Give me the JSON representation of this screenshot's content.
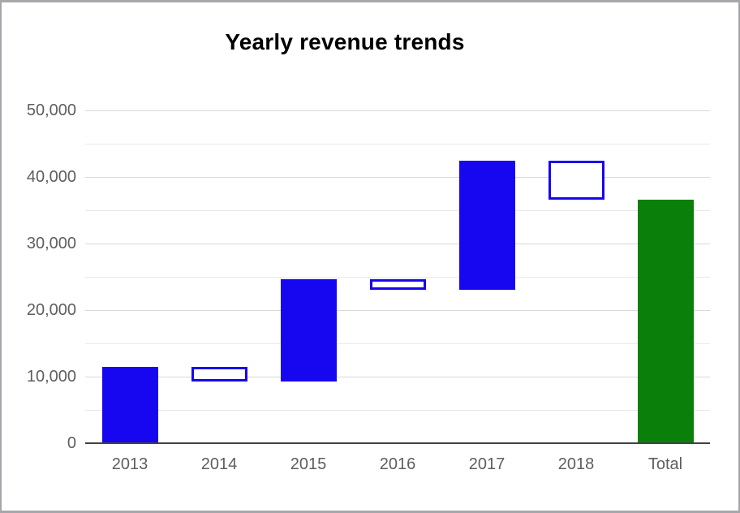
{
  "window": {
    "background": "#ffffff",
    "border_color": "#a6a7ab"
  },
  "chart_data": {
    "type": "waterfall",
    "title": "Yearly revenue trends",
    "categories": [
      "2013",
      "2014",
      "2015",
      "2016",
      "2017",
      "2018",
      "Total"
    ],
    "bars": [
      {
        "category": "2013",
        "start": 0,
        "end": 11500,
        "kind": "increase"
      },
      {
        "category": "2014",
        "start": 11500,
        "end": 9300,
        "kind": "decrease"
      },
      {
        "category": "2015",
        "start": 9300,
        "end": 24600,
        "kind": "increase"
      },
      {
        "category": "2016",
        "start": 24600,
        "end": 23000,
        "kind": "decrease"
      },
      {
        "category": "2017",
        "start": 23000,
        "end": 42500,
        "kind": "increase"
      },
      {
        "category": "2018",
        "start": 42500,
        "end": 36600,
        "kind": "decrease"
      },
      {
        "category": "Total",
        "start": 0,
        "end": 36600,
        "kind": "total"
      }
    ],
    "y_axis": {
      "min": 0,
      "max": 50000,
      "major_step": 10000,
      "minor_step": 5000,
      "tick_labels": [
        "0",
        "10,000",
        "20,000",
        "30,000",
        "40,000",
        "50,000"
      ]
    },
    "x_axis": {
      "labels": [
        "2013",
        "2014",
        "2015",
        "2016",
        "2017",
        "2018",
        "Total"
      ]
    },
    "legend": "none",
    "grid": true,
    "colors": {
      "increase_fill": "#1707f0",
      "decrease_border": "#1707f0",
      "decrease_fill": "#ffffff",
      "total_fill": "#0a800a",
      "major_grid": "#d9d9d9",
      "minor_grid": "#e9e9e9",
      "baseline": "#424242",
      "axis_label": "#5e5e5e",
      "title": "#000000"
    }
  }
}
